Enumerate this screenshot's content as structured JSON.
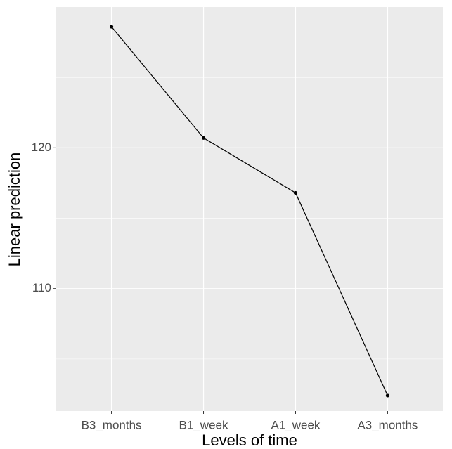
{
  "chart_data": {
    "type": "line",
    "x_label": "Levels of time",
    "y_label": "Linear prediction",
    "categories": [
      "B3_months",
      "B1_week",
      "A1_week",
      "A3_months"
    ],
    "values": [
      128.6,
      120.7,
      116.8,
      102.4
    ],
    "color": "#000000",
    "ylim": [
      101.3,
      130.0
    ],
    "yticks": [
      110,
      120
    ],
    "minor_yticks": [
      105,
      115,
      125
    ],
    "grid": true
  }
}
